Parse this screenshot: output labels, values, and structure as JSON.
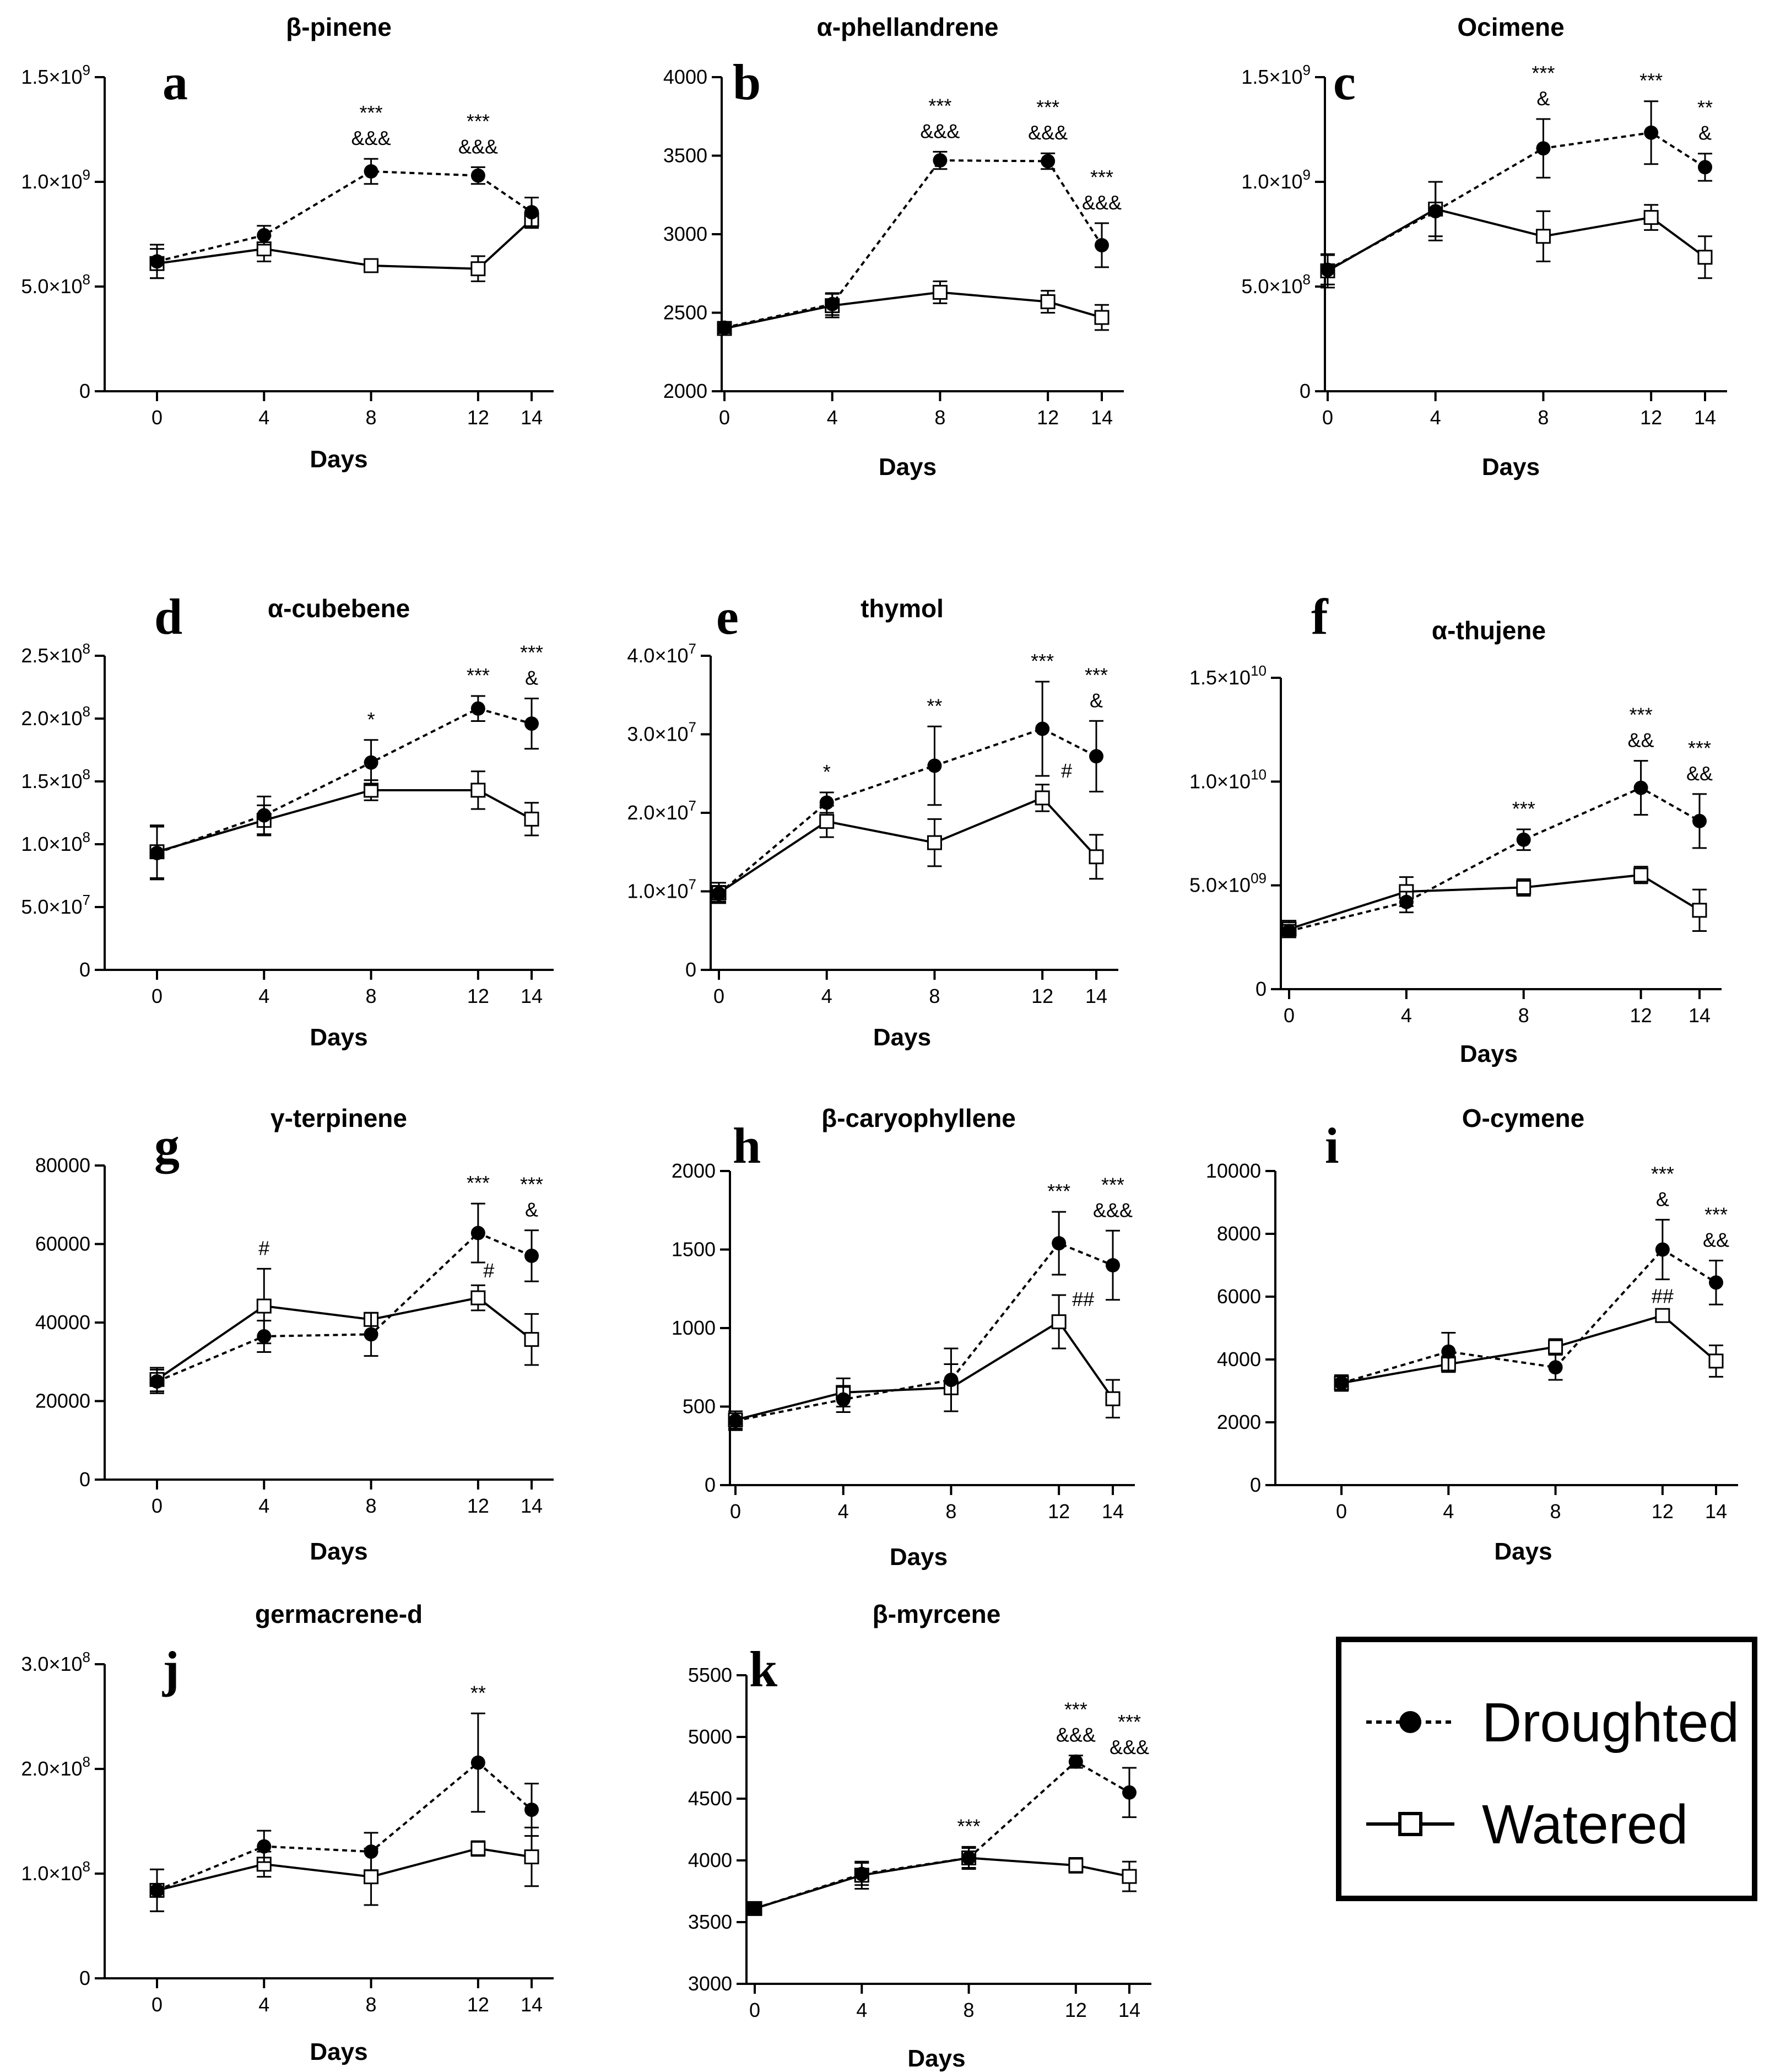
{
  "chart_data": [
    {
      "type": "line",
      "letter": "a",
      "title": "β-pinene",
      "xlabel": "Days",
      "x": [
        0,
        4,
        8,
        12,
        14
      ],
      "ylim": [
        0,
        1500000000
      ],
      "yticks": [
        {
          "v": 0,
          "m": "0"
        },
        {
          "v": 500000000,
          "m": "5.0",
          "e": "8"
        },
        {
          "v": 1000000000,
          "m": "1.0",
          "e": "9"
        },
        {
          "v": 1500000000,
          "m": "1.5",
          "e": "9"
        }
      ],
      "series": [
        {
          "name": "Droughted",
          "values": [
            620000000,
            745000000,
            1050000000,
            1030000000,
            855000000
          ],
          "err": [
            80000000,
            45000000,
            60000000,
            40000000,
            70000000
          ]
        },
        {
          "name": "Watered",
          "values": [
            610000000,
            680000000,
            600000000,
            585000000,
            820000000
          ],
          "err": [
            70000000,
            60000000,
            25000000,
            60000000,
            40000000
          ]
        }
      ],
      "annotations": [
        {
          "x": 8,
          "lines": [
            "***",
            "&&&"
          ]
        },
        {
          "x": 12,
          "lines": [
            "***",
            "&&&"
          ]
        }
      ]
    },
    {
      "type": "line",
      "letter": "b",
      "title": "α-phellandrene",
      "xlabel": "Days",
      "x": [
        0,
        4,
        8,
        12,
        14
      ],
      "ylim": [
        2000,
        4000
      ],
      "yticks": [
        {
          "v": 2000,
          "m": "2000"
        },
        {
          "v": 2500,
          "m": "2500"
        },
        {
          "v": 3000,
          "m": "3000"
        },
        {
          "v": 3500,
          "m": "3500"
        },
        {
          "v": 4000,
          "m": "4000"
        }
      ],
      "series": [
        {
          "name": "Droughted",
          "values": [
            2405,
            2555,
            3470,
            3465,
            2930
          ],
          "err": [
            35,
            70,
            55,
            50,
            140
          ]
        },
        {
          "name": "Watered",
          "values": [
            2400,
            2545,
            2630,
            2570,
            2470
          ],
          "err": [
            30,
            75,
            70,
            70,
            80
          ]
        }
      ],
      "annotations": [
        {
          "x": 8,
          "lines": [
            "***",
            "&&&"
          ]
        },
        {
          "x": 12,
          "lines": [
            "***",
            "&&&"
          ]
        },
        {
          "x": 14,
          "lines": [
            "***",
            "&&&"
          ]
        }
      ]
    },
    {
      "type": "line",
      "letter": "c",
      "title": "Ocimene",
      "xlabel": "Days",
      "x": [
        0,
        4,
        8,
        12,
        14
      ],
      "ylim": [
        0,
        1500000000
      ],
      "yticks": [
        {
          "v": 0,
          "m": "0"
        },
        {
          "v": 500000000,
          "m": "5.0",
          "e": "8"
        },
        {
          "v": 1000000000,
          "m": "1.0",
          "e": "9"
        },
        {
          "v": 1500000000,
          "m": "1.5",
          "e": "9"
        }
      ],
      "series": [
        {
          "name": "Droughted",
          "values": [
            580000000,
            860000000,
            1160000000,
            1235000000,
            1070000000
          ],
          "err": [
            70000000,
            140000000,
            140000000,
            150000000,
            65000000
          ]
        },
        {
          "name": "Watered",
          "values": [
            575000000,
            870000000,
            740000000,
            830000000,
            640000000
          ],
          "err": [
            80000000,
            130000000,
            120000000,
            60000000,
            100000000
          ]
        }
      ],
      "annotations": [
        {
          "x": 8,
          "lines": [
            "***",
            "&"
          ]
        },
        {
          "x": 12,
          "lines": [
            "***"
          ]
        },
        {
          "x": 14,
          "lines": [
            "**",
            "&"
          ]
        }
      ]
    },
    {
      "type": "line",
      "letter": "d",
      "title": "α-cubebene",
      "xlabel": "Days",
      "x": [
        0,
        4,
        8,
        12,
        14
      ],
      "ylim": [
        0,
        250000000
      ],
      "yticks": [
        {
          "v": 0,
          "m": "0"
        },
        {
          "v": 50000000,
          "m": "5.0",
          "e": "7"
        },
        {
          "v": 100000000,
          "m": "1.0",
          "e": "8"
        },
        {
          "v": 150000000,
          "m": "1.5",
          "e": "8"
        },
        {
          "v": 200000000,
          "m": "2.0",
          "e": "8"
        },
        {
          "v": 250000000,
          "m": "2.5",
          "e": "8"
        }
      ],
      "series": [
        {
          "name": "Droughted",
          "values": [
            93000000,
            123000000,
            165000000,
            208000000,
            196000000
          ],
          "err": [
            21000000,
            15000000,
            18000000,
            10000000,
            20000000
          ]
        },
        {
          "name": "Watered",
          "values": [
            94000000,
            119000000,
            143000000,
            143000000,
            120000000
          ],
          "err": [
            21000000,
            12000000,
            8000000,
            15000000,
            13000000
          ]
        }
      ],
      "annotations": [
        {
          "x": 8,
          "lines": [
            "*"
          ]
        },
        {
          "x": 12,
          "lines": [
            "***"
          ]
        },
        {
          "x": 14,
          "lines": [
            "***",
            "&"
          ]
        }
      ]
    },
    {
      "type": "line",
      "letter": "e",
      "title": "thymol",
      "xlabel": "Days",
      "x": [
        0,
        4,
        8,
        12,
        14
      ],
      "ylim": [
        0,
        40000000
      ],
      "yticks": [
        {
          "v": 0,
          "m": "0"
        },
        {
          "v": 10000000,
          "m": "1.0",
          "e": "7"
        },
        {
          "v": 20000000,
          "m": "2.0",
          "e": "7"
        },
        {
          "v": 30000000,
          "m": "3.0",
          "e": "7"
        },
        {
          "v": 40000000,
          "m": "4.0",
          "e": "7"
        }
      ],
      "series": [
        {
          "name": "Droughted",
          "values": [
            9700000,
            21300000,
            26000000,
            30700000,
            27200000
          ],
          "err": [
            1000000,
            1300000,
            5000000,
            6000000,
            4500000
          ]
        },
        {
          "name": "Watered",
          "values": [
            9800000,
            18900000,
            16200000,
            21900000,
            14400000
          ],
          "err": [
            1300000,
            2000000,
            3000000,
            1700000,
            2800000
          ]
        }
      ],
      "annotations": [
        {
          "x": 4,
          "lines": [
            "*"
          ]
        },
        {
          "x": 8,
          "lines": [
            "**"
          ]
        },
        {
          "x": 12,
          "lines": [
            "***"
          ]
        },
        {
          "x": 14,
          "lines": [
            "***",
            "&"
          ]
        },
        {
          "x": 12,
          "lines": [
            "#"
          ],
          "y": 24500000,
          "dx": 0.9
        }
      ]
    },
    {
      "type": "line",
      "letter": "f",
      "title": "α-thujene",
      "xlabel": "Days",
      "x": [
        0,
        4,
        8,
        12,
        14
      ],
      "ylim": [
        0,
        15000000000
      ],
      "yticks": [
        {
          "v": 0,
          "m": "0"
        },
        {
          "v": 5000000000,
          "m": "5.0",
          "e": "09"
        },
        {
          "v": 10000000000,
          "m": "1.0",
          "e": "10"
        },
        {
          "v": 15000000000,
          "m": "1.5",
          "e": "10"
        }
      ],
      "series": [
        {
          "name": "Droughted",
          "values": [
            2800000000,
            4200000000,
            7200000000,
            9700000000,
            8100000000
          ],
          "err": [
            300000000,
            500000000,
            500000000,
            1300000000,
            1300000000
          ]
        },
        {
          "name": "Watered",
          "values": [
            2900000000,
            4700000000,
            4900000000,
            5500000000,
            3800000000
          ],
          "err": [
            400000000,
            700000000,
            400000000,
            400000000,
            1000000000
          ]
        }
      ],
      "annotations": [
        {
          "x": 8,
          "lines": [
            "***"
          ]
        },
        {
          "x": 12,
          "lines": [
            "***",
            "&&"
          ]
        },
        {
          "x": 14,
          "lines": [
            "***",
            "&&"
          ]
        }
      ]
    },
    {
      "type": "line",
      "letter": "g",
      "title": "γ-terpinene",
      "xlabel": "Days",
      "x": [
        0,
        4,
        8,
        12,
        14
      ],
      "ylim": [
        0,
        80000
      ],
      "yticks": [
        {
          "v": 0,
          "m": "0"
        },
        {
          "v": 20000,
          "m": "20000"
        },
        {
          "v": 40000,
          "m": "40000"
        },
        {
          "v": 60000,
          "m": "60000"
        },
        {
          "v": 80000,
          "m": "80000"
        }
      ],
      "series": [
        {
          "name": "Droughted",
          "values": [
            25000,
            36500,
            37000,
            62800,
            57000
          ],
          "err": [
            3000,
            4000,
            5500,
            7500,
            6500
          ]
        },
        {
          "name": "Watered",
          "values": [
            25500,
            44200,
            40800,
            46300,
            35700
          ],
          "err": [
            3000,
            9500,
            1500,
            3200,
            6500
          ]
        }
      ],
      "annotations": [
        {
          "x": 4,
          "lines": [
            "#"
          ]
        },
        {
          "x": 12,
          "lines": [
            "***"
          ]
        },
        {
          "x": 14,
          "lines": [
            "***",
            "&"
          ]
        },
        {
          "x": 12,
          "lines": [
            "#"
          ],
          "y": 51500,
          "dx": 0.4
        }
      ]
    },
    {
      "type": "line",
      "letter": "h",
      "title": "β-caryophyllene",
      "xlabel": "Days",
      "x": [
        0,
        4,
        8,
        12,
        14
      ],
      "ylim": [
        0,
        2000
      ],
      "yticks": [
        {
          "v": 0,
          "m": "0"
        },
        {
          "v": 500,
          "m": "500"
        },
        {
          "v": 1000,
          "m": "1000"
        },
        {
          "v": 1500,
          "m": "1500"
        },
        {
          "v": 2000,
          "m": "2000"
        }
      ],
      "series": [
        {
          "name": "Droughted",
          "values": [
            410,
            545,
            670,
            1540,
            1400
          ],
          "err": [
            60,
            80,
            200,
            200,
            220
          ]
        },
        {
          "name": "Watered",
          "values": [
            415,
            590,
            620,
            1040,
            550
          ],
          "err": [
            55,
            90,
            150,
            170,
            120
          ]
        }
      ],
      "annotations": [
        {
          "x": 12,
          "lines": [
            "***"
          ]
        },
        {
          "x": 14,
          "lines": [
            "***",
            "&&&"
          ]
        },
        {
          "x": 12,
          "lines": [
            "##"
          ],
          "y": 1140,
          "dx": 0.9
        }
      ]
    },
    {
      "type": "line",
      "letter": "i",
      "title": "O-cymene",
      "xlabel": "Days",
      "x": [
        0,
        4,
        8,
        12,
        14
      ],
      "ylim": [
        0,
        10000
      ],
      "yticks": [
        {
          "v": 0,
          "m": "0"
        },
        {
          "v": 2000,
          "m": "2000"
        },
        {
          "v": 4000,
          "m": "4000"
        },
        {
          "v": 6000,
          "m": "6000"
        },
        {
          "v": 8000,
          "m": "8000"
        },
        {
          "v": 10000,
          "m": "10000"
        }
      ],
      "series": [
        {
          "name": "Droughted",
          "values": [
            3250,
            4250,
            3750,
            7500,
            6450
          ],
          "err": [
            220,
            600,
            400,
            950,
            700
          ]
        },
        {
          "name": "Watered",
          "values": [
            3250,
            3850,
            4400,
            5400,
            3950
          ],
          "err": [
            250,
            250,
            250,
            150,
            500
          ]
        }
      ],
      "annotations": [
        {
          "x": 12,
          "lines": [
            "***",
            "&"
          ]
        },
        {
          "x": 14,
          "lines": [
            "***",
            "&&"
          ]
        },
        {
          "x": 12,
          "lines": [
            "##"
          ],
          "y": 5800
        }
      ]
    },
    {
      "type": "line",
      "letter": "j",
      "title": "germacrene-d",
      "xlabel": "Days",
      "x": [
        0,
        4,
        8,
        12,
        14
      ],
      "ylim": [
        0,
        300000000
      ],
      "yticks": [
        {
          "v": 0,
          "m": "0"
        },
        {
          "v": 100000000,
          "m": "1.0",
          "e": "8"
        },
        {
          "v": 200000000,
          "m": "2.0",
          "e": "8"
        },
        {
          "v": 300000000,
          "m": "3.0",
          "e": "8"
        }
      ],
      "series": [
        {
          "name": "Droughted",
          "values": [
            84000000,
            126000000,
            121000000,
            206000000,
            161000000
          ],
          "err": [
            20000000,
            15000000,
            18000000,
            47000000,
            25000000
          ]
        },
        {
          "name": "Watered",
          "values": [
            84000000,
            109000000,
            97000000,
            124000000,
            116000000
          ],
          "err": [
            20000000,
            12000000,
            27000000,
            7000000,
            28000000
          ]
        }
      ],
      "annotations": [
        {
          "x": 12,
          "lines": [
            "**"
          ]
        }
      ]
    },
    {
      "type": "line",
      "letter": "k",
      "title": "β-myrcene",
      "xlabel": "Days",
      "x": [
        0,
        4,
        8,
        12,
        14
      ],
      "ylim": [
        3000,
        5500
      ],
      "yticks": [
        {
          "v": 3000,
          "m": "3000"
        },
        {
          "v": 3500,
          "m": "3500"
        },
        {
          "v": 4000,
          "m": "4000"
        },
        {
          "v": 4500,
          "m": "4500"
        },
        {
          "v": 5000,
          "m": "5000"
        },
        {
          "v": 5500,
          "m": "5500"
        }
      ],
      "series": [
        {
          "name": "Droughted",
          "values": [
            3610,
            3890,
            4020,
            4800,
            4550
          ],
          "err": [
            40,
            90,
            80,
            50,
            200
          ]
        },
        {
          "name": "Watered",
          "values": [
            3610,
            3880,
            4020,
            3960,
            3870
          ],
          "err": [
            40,
            110,
            90,
            60,
            120
          ]
        }
      ],
      "annotations": [
        {
          "x": 8,
          "lines": [
            "***"
          ]
        },
        {
          "x": 12,
          "lines": [
            "***",
            "&&&"
          ]
        },
        {
          "x": 14,
          "lines": [
            "***",
            "&&&"
          ]
        }
      ]
    }
  ],
  "legend": {
    "droughted_label": "Droughted",
    "watered_label": "Watered"
  },
  "multiplier_sign": "×",
  "colors": {
    "ink": "#000000",
    "background": "#ffffff"
  }
}
